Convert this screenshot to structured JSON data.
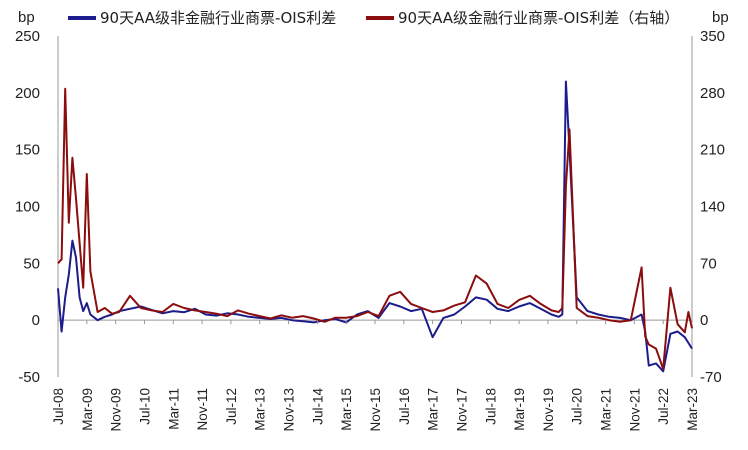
{
  "chart_data": {
    "type": "line",
    "left_axis": {
      "unit": "bp",
      "ylim": [
        -50,
        250
      ],
      "ticks": [
        -50,
        0,
        50,
        100,
        150,
        200,
        250
      ]
    },
    "right_axis": {
      "unit": "bp",
      "ylim": [
        -70,
        350
      ],
      "ticks": [
        -70,
        0,
        70,
        140,
        210,
        280,
        350
      ]
    },
    "x_range": [
      "2008-07",
      "2023-03"
    ],
    "x_ticks": [
      "Jul-08",
      "Mar-09",
      "Nov-09",
      "Jul-10",
      "Mar-11",
      "Nov-11",
      "Jul-12",
      "Mar-13",
      "Nov-13",
      "Jul-14",
      "Mar-15",
      "Nov-15",
      "Jul-16",
      "Mar-17",
      "Nov-17",
      "Jul-18",
      "Mar-19",
      "Nov-19",
      "Jul-20",
      "Mar-21",
      "Nov-21",
      "Jul-22",
      "Mar-23"
    ],
    "legend_position": "top",
    "grid": false,
    "series": [
      {
        "name": "90天AA级非金融行业商票-OIS利差",
        "axis": "left",
        "color": "#1c1c8c",
        "x": [
          "2008-07",
          "2008-08",
          "2008-09",
          "2008-10",
          "2008-11",
          "2008-12",
          "2009-01",
          "2009-02",
          "2009-03",
          "2009-04",
          "2009-06",
          "2009-08",
          "2009-10",
          "2009-12",
          "2010-03",
          "2010-06",
          "2010-09",
          "2010-12",
          "2011-03",
          "2011-06",
          "2011-09",
          "2011-12",
          "2012-03",
          "2012-06",
          "2012-09",
          "2012-12",
          "2013-03",
          "2013-06",
          "2013-09",
          "2013-12",
          "2014-03",
          "2014-06",
          "2014-09",
          "2014-12",
          "2015-03",
          "2015-06",
          "2015-09",
          "2015-12",
          "2016-03",
          "2016-06",
          "2016-09",
          "2016-12",
          "2017-03",
          "2017-06",
          "2017-09",
          "2017-12",
          "2018-03",
          "2018-06",
          "2018-09",
          "2018-12",
          "2019-03",
          "2019-06",
          "2019-09",
          "2019-12",
          "2020-02",
          "2020-03",
          "2020-04",
          "2020-05",
          "2020-07",
          "2020-10",
          "2021-01",
          "2021-04",
          "2021-07",
          "2021-10",
          "2022-01",
          "2022-02",
          "2022-03",
          "2022-05",
          "2022-07",
          "2022-09",
          "2022-11",
          "2023-01",
          "2023-02",
          "2023-03"
        ],
        "y": [
          28,
          -10,
          20,
          40,
          70,
          55,
          20,
          8,
          15,
          5,
          0,
          3,
          5,
          8,
          10,
          12,
          9,
          6,
          8,
          7,
          10,
          5,
          4,
          6,
          5,
          3,
          2,
          1,
          2,
          0,
          -1,
          -2,
          0,
          1,
          -2,
          5,
          8,
          2,
          15,
          12,
          8,
          10,
          -15,
          2,
          5,
          12,
          20,
          18,
          10,
          8,
          12,
          15,
          10,
          5,
          3,
          5,
          210,
          150,
          20,
          8,
          5,
          3,
          2,
          0,
          5,
          -10,
          -40,
          -38,
          -45,
          -12,
          -10,
          -15,
          -20,
          -25
        ]
      },
      {
        "name": "90天AA级金融行业商票-OIS利差（右轴）",
        "axis": "right",
        "color": "#8b0d0d",
        "x": [
          "2008-07",
          "2008-08",
          "2008-09",
          "2008-10",
          "2008-11",
          "2008-12",
          "2009-01",
          "2009-02",
          "2009-03",
          "2009-04",
          "2009-06",
          "2009-08",
          "2009-10",
          "2009-12",
          "2010-03",
          "2010-06",
          "2010-09",
          "2010-12",
          "2011-03",
          "2011-06",
          "2011-09",
          "2011-12",
          "2012-03",
          "2012-06",
          "2012-09",
          "2012-12",
          "2013-03",
          "2013-06",
          "2013-09",
          "2013-12",
          "2014-03",
          "2014-06",
          "2014-09",
          "2014-12",
          "2015-03",
          "2015-06",
          "2015-09",
          "2015-12",
          "2016-03",
          "2016-06",
          "2016-09",
          "2016-12",
          "2017-03",
          "2017-06",
          "2017-09",
          "2017-12",
          "2018-03",
          "2018-06",
          "2018-09",
          "2018-12",
          "2019-03",
          "2019-06",
          "2019-09",
          "2019-12",
          "2020-02",
          "2020-03",
          "2020-04",
          "2020-05",
          "2020-07",
          "2020-10",
          "2021-01",
          "2021-04",
          "2021-07",
          "2021-10",
          "2022-01",
          "2022-02",
          "2022-03",
          "2022-05",
          "2022-07",
          "2022-09",
          "2022-11",
          "2023-01",
          "2023-02",
          "2023-03"
        ],
        "y": [
          70,
          75,
          285,
          120,
          200,
          150,
          95,
          40,
          180,
          60,
          10,
          15,
          8,
          10,
          30,
          15,
          12,
          10,
          20,
          15,
          12,
          10,
          8,
          5,
          12,
          8,
          5,
          2,
          6,
          3,
          5,
          2,
          -2,
          3,
          3,
          5,
          10,
          5,
          30,
          35,
          20,
          15,
          10,
          12,
          18,
          22,
          55,
          45,
          20,
          15,
          25,
          30,
          20,
          12,
          10,
          15,
          165,
          235,
          15,
          5,
          3,
          0,
          -2,
          0,
          65,
          -20,
          -30,
          -35,
          -60,
          40,
          -5,
          -15,
          10,
          -10
        ]
      }
    ]
  }
}
